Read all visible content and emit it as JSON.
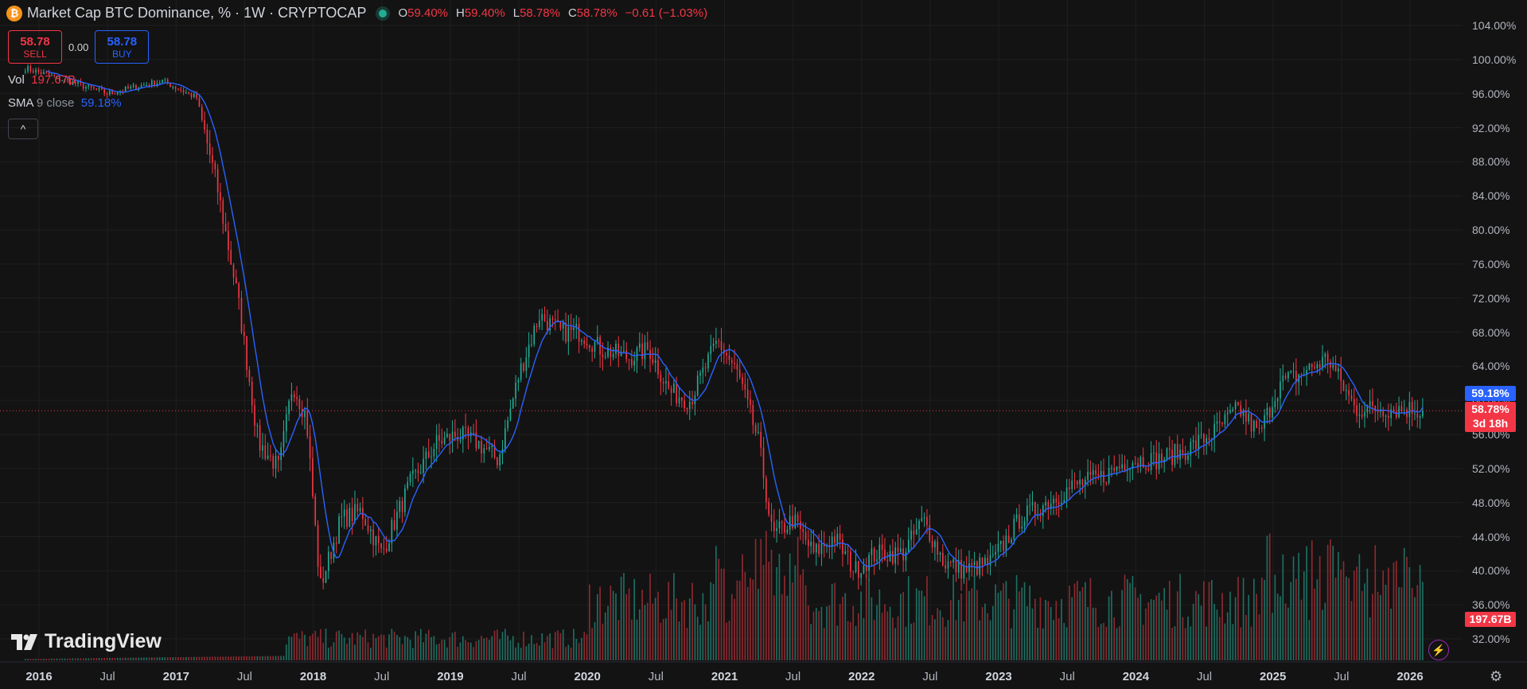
{
  "header": {
    "title": "Market Cap BTC Dominance, % · 1W · CRYPTOCAP",
    "logo_glyph": "₿",
    "ohlc": [
      {
        "k": "O",
        "v": "59.40%"
      },
      {
        "k": "H",
        "v": "59.40%"
      },
      {
        "k": "L",
        "v": "58.78%"
      },
      {
        "k": "C",
        "v": "58.78%"
      },
      {
        "k": "",
        "v": "−0.61 (−1.03%)"
      }
    ]
  },
  "trade": {
    "sell_price": "58.78",
    "sell_label": "SELL",
    "spread": "0.00",
    "buy_price": "58.78",
    "buy_label": "BUY"
  },
  "indicators": {
    "vol_name": "Vol",
    "vol_value": "197.67B",
    "sma_name": "SMA",
    "sma_params": "9 close",
    "sma_value": "59.18%"
  },
  "collapse_glyph": "^",
  "logo_text": "TradingView",
  "price_tags": {
    "sma": "59.18%",
    "last": "58.78%",
    "countdown": "3d 18h",
    "volume": "197.67B"
  },
  "colors": {
    "up": "#22ab94",
    "down": "#f23645",
    "sma": "#2962ff",
    "bg": "#131313"
  },
  "chart_data": {
    "type": "candlestick",
    "timeframe": "1W",
    "y_axis": {
      "unit": "%",
      "ticks": [
        "32.00%",
        "36.00%",
        "40.00%",
        "44.00%",
        "48.00%",
        "52.00%",
        "56.00%",
        "60.00%",
        "64.00%",
        "68.00%",
        "72.00%",
        "76.00%",
        "80.00%",
        "84.00%",
        "88.00%",
        "92.00%",
        "96.00%",
        "100.00%",
        "104.00%"
      ]
    },
    "x_axis": {
      "labels": [
        "2016",
        "Jul",
        "2017",
        "Jul",
        "2018",
        "Jul",
        "2019",
        "Jul",
        "2020",
        "Jul",
        "2021",
        "Jul",
        "2022",
        "Jul",
        "2023",
        "Jul",
        "2024",
        "Jul",
        "2025",
        "Jul",
        "2026"
      ],
      "label_dates": [
        2016.0,
        2016.5,
        2017.0,
        2017.5,
        2018.0,
        2018.5,
        2019.0,
        2019.5,
        2020.0,
        2020.5,
        2021.0,
        2021.5,
        2022.0,
        2022.5,
        2023.0,
        2023.5,
        2024.0,
        2024.5,
        2025.0,
        2025.5,
        2026.0
      ]
    },
    "dominance_anchors": [
      [
        2015.9,
        99
      ],
      [
        2016.5,
        96
      ],
      [
        2016.9,
        97.5
      ],
      [
        2017.15,
        95.5
      ],
      [
        2017.3,
        85
      ],
      [
        2017.45,
        72
      ],
      [
        2017.6,
        55
      ],
      [
        2017.75,
        52
      ],
      [
        2017.85,
        62
      ],
      [
        2017.95,
        58
      ],
      [
        2018.05,
        38
      ],
      [
        2018.2,
        46
      ],
      [
        2018.35,
        47
      ],
      [
        2018.5,
        42
      ],
      [
        2018.7,
        50
      ],
      [
        2018.9,
        55
      ],
      [
        2019.05,
        56
      ],
      [
        2019.2,
        55
      ],
      [
        2019.35,
        53
      ],
      [
        2019.5,
        63
      ],
      [
        2019.65,
        70
      ],
      [
        2019.8,
        68
      ],
      [
        2019.95,
        68
      ],
      [
        2020.1,
        66
      ],
      [
        2020.3,
        65
      ],
      [
        2020.45,
        66
      ],
      [
        2020.6,
        61
      ],
      [
        2020.75,
        60
      ],
      [
        2020.95,
        67
      ],
      [
        2021.1,
        63
      ],
      [
        2021.25,
        55
      ],
      [
        2021.35,
        44
      ],
      [
        2021.5,
        46
      ],
      [
        2021.65,
        42
      ],
      [
        2021.8,
        44
      ],
      [
        2021.95,
        40
      ],
      [
        2022.1,
        42
      ],
      [
        2022.3,
        42
      ],
      [
        2022.45,
        46
      ],
      [
        2022.6,
        41
      ],
      [
        2022.75,
        40
      ],
      [
        2022.95,
        41
      ],
      [
        2023.15,
        46
      ],
      [
        2023.35,
        48
      ],
      [
        2023.55,
        50
      ],
      [
        2023.75,
        51
      ],
      [
        2023.95,
        53
      ],
      [
        2024.15,
        53
      ],
      [
        2024.35,
        54
      ],
      [
        2024.55,
        56
      ],
      [
        2024.75,
        59
      ],
      [
        2024.9,
        56
      ],
      [
        2025.05,
        62
      ],
      [
        2025.2,
        63
      ],
      [
        2025.4,
        65
      ],
      [
        2025.6,
        59
      ],
      [
        2025.8,
        59
      ],
      [
        2026.0,
        59
      ],
      [
        2026.1,
        58.78
      ]
    ],
    "last_close": 58.78,
    "sma_last": 59.18,
    "volume_last": "197.67B"
  }
}
